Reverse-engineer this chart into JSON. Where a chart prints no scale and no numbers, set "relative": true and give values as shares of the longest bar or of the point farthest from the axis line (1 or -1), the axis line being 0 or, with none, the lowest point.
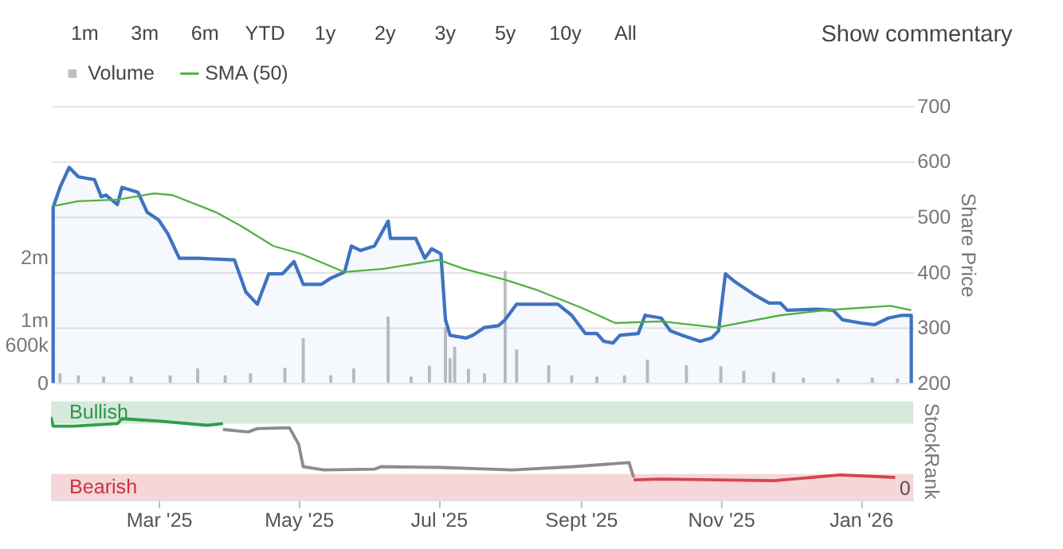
{
  "chart_data": [
    {
      "type": "line",
      "y2label": "Share Price",
      "annotations": [
        "1m",
        "3m",
        "6m",
        "YTD",
        "1y",
        "2y",
        "3y",
        "5y",
        "10y",
        "All",
        "Show commentary"
      ],
      "xlim": [
        "2025-01-13",
        "2026-01-24"
      ],
      "y2lim": [
        200,
        700
      ],
      "y2ticks": [
        200,
        300,
        400,
        500,
        600,
        700
      ],
      "ylim": [
        0,
        4400000
      ],
      "yticks": [
        {
          "value": 0,
          "label": "0"
        },
        {
          "value": 600000,
          "label": "600k"
        },
        {
          "value": 1000000,
          "label": "1m"
        },
        {
          "value": 2000000,
          "label": "2m"
        }
      ],
      "grid": "y",
      "legend": "top left",
      "tick_labels": "y",
      "series": [
        {
          "type": "bar",
          "name": "Volume",
          "color": "#bdbdc2",
          "x": [
            "2025-01-17",
            "2025-01-25",
            "2025-02-05",
            "2025-02-17",
            "2025-03-06",
            "2025-03-18",
            "2025-03-30",
            "2025-04-10",
            "2025-04-25",
            "2025-05-03",
            "2025-05-15",
            "2025-05-25",
            "2025-06-09",
            "2025-06-19",
            "2025-06-27",
            "2025-07-04",
            "2025-07-06",
            "2025-07-08",
            "2025-07-14",
            "2025-07-21",
            "2025-07-30",
            "2025-08-04",
            "2025-08-18",
            "2025-08-28",
            "2025-09-08",
            "2025-09-20",
            "2025-09-30",
            "2025-10-17",
            "2025-11-01",
            "2025-11-11",
            "2025-11-24",
            "2025-12-07",
            "2025-12-22",
            "2026-01-06",
            "2026-01-17"
          ],
          "values": [
            150000,
            120000,
            100000,
            100000,
            120000,
            230000,
            120000,
            150000,
            240000,
            710000,
            120000,
            230000,
            1050000,
            100000,
            270000,
            880000,
            390000,
            570000,
            220000,
            150000,
            1780000,
            530000,
            280000,
            120000,
            100000,
            120000,
            370000,
            280000,
            260000,
            190000,
            170000,
            80000,
            70000,
            80000,
            70000
          ]
        },
        {
          "type": "area",
          "axis": "y2",
          "color": "#3f72c1",
          "x": [
            "2025-01-14",
            "2025-01-17",
            "2025-01-21",
            "2025-01-25",
            "2025-02-01",
            "2025-02-04",
            "2025-02-06",
            "2025-02-11",
            "2025-02-13",
            "2025-02-20",
            "2025-02-24",
            "2025-03-01",
            "2025-03-05",
            "2025-03-10",
            "2025-03-18",
            "2025-04-03",
            "2025-04-08",
            "2025-04-13",
            "2025-04-18",
            "2025-04-24",
            "2025-04-29",
            "2025-05-03",
            "2025-05-11",
            "2025-05-15",
            "2025-05-21",
            "2025-05-24",
            "2025-05-28",
            "2025-06-03",
            "2025-06-09",
            "2025-06-10",
            "2025-06-21",
            "2025-06-25",
            "2025-06-28",
            "2025-07-02",
            "2025-07-04",
            "2025-07-06",
            "2025-07-13",
            "2025-07-16",
            "2025-07-21",
            "2025-07-27",
            "2025-07-30",
            "2025-08-04",
            "2025-08-10",
            "2025-08-22",
            "2025-08-28",
            "2025-09-03",
            "2025-09-08",
            "2025-09-11",
            "2025-09-15",
            "2025-09-18",
            "2025-09-26",
            "2025-09-29",
            "2025-10-06",
            "2025-10-10",
            "2025-10-15",
            "2025-10-23",
            "2025-10-28",
            "2025-10-31",
            "2025-11-03",
            "2025-11-07",
            "2025-11-11",
            "2025-11-16",
            "2025-11-22",
            "2025-11-27",
            "2025-11-30",
            "2025-12-13",
            "2025-12-20",
            "2025-12-24",
            "2026-01-01",
            "2026-01-07",
            "2026-01-13",
            "2026-01-19",
            "2026-01-23"
          ],
          "values": [
            517,
            553,
            589,
            572,
            567,
            536,
            539,
            522,
            553,
            544,
            508,
            494,
            469,
            425,
            425,
            422,
            364,
            342,
            397,
            397,
            419,
            378,
            378,
            389,
            400,
            447,
            439,
            447,
            492,
            461,
            461,
            425,
            442,
            433,
            314,
            286,
            281,
            286,
            300,
            303,
            314,
            342,
            342,
            342,
            322,
            289,
            289,
            275,
            272,
            286,
            289,
            322,
            317,
            294,
            286,
            275,
            281,
            294,
            397,
            383,
            372,
            358,
            344,
            344,
            331,
            333,
            331,
            314,
            308,
            305,
            317,
            322,
            322
          ]
        },
        {
          "type": "line",
          "name": "SMA (50)",
          "axis": "y2",
          "color": "#52b043",
          "x": [
            "2025-01-14",
            "2025-01-25",
            "2025-02-11",
            "2025-02-27",
            "2025-03-07",
            "2025-03-26",
            "2025-04-06",
            "2025-04-20",
            "2025-05-02",
            "2025-05-21",
            "2025-06-07",
            "2025-07-01",
            "2025-07-12",
            "2025-07-30",
            "2025-08-12",
            "2025-09-01",
            "2025-09-16",
            "2025-10-06",
            "2025-10-30",
            "2025-11-27",
            "2025-12-16",
            "2026-01-14",
            "2026-01-23"
          ],
          "values": [
            519,
            528,
            531,
            542,
            539,
            508,
            483,
            447,
            433,
            400,
            406,
            422,
            406,
            386,
            369,
            336,
            308,
            311,
            300,
            322,
            331,
            339,
            331
          ]
        }
      ]
    },
    {
      "type": "line",
      "relative": true,
      "ylabel": "StockRank",
      "annotations": [
        "0"
      ],
      "xlim": [
        "2025-01-13",
        "2026-01-24"
      ],
      "xticks": [
        {
          "value": "2025-03-01",
          "label": "Mar '25"
        },
        {
          "value": "2025-05-01",
          "label": "May '25"
        },
        {
          "value": "2025-07-01",
          "label": "Jul '25"
        },
        {
          "value": "2025-09-01",
          "label": "Sept '25"
        },
        {
          "value": "2025-11-01",
          "label": "Nov '25"
        },
        {
          "value": "2026-01-01",
          "label": "Jan '26"
        }
      ],
      "bands": [
        {
          "axis": "y",
          "from": 0.92,
          "to": 1.19,
          "label": "Bullish",
          "color": "#d5eadb"
        },
        {
          "axis": "y",
          "from": 0,
          "to": 0.31,
          "label": "Bearish",
          "color": "#f5d6d9"
        }
      ],
      "series": [
        {
          "color": "#2e9e4a",
          "x": [
            "2025-01-13",
            "2025-01-14",
            "2025-01-23",
            "2025-02-11",
            "2025-02-13",
            "2025-03-02",
            "2025-03-22",
            "2025-03-29"
          ],
          "values": [
            1,
            0.89,
            0.89,
            0.92,
            0.98,
            0.95,
            0.9,
            0.92
          ]
        },
        {
          "color": "#8c8c8c",
          "x": [
            "2025-03-29",
            "2025-04-09",
            "2025-04-13",
            "2025-04-27",
            "2025-05-01",
            "2025-05-03",
            "2025-05-12",
            "2025-06-03",
            "2025-06-06",
            "2025-07-02",
            "2025-08-02",
            "2025-08-29",
            "2025-09-22",
            "2025-09-24"
          ],
          "values": [
            0.85,
            0.82,
            0.86,
            0.87,
            0.67,
            0.4,
            0.36,
            0.37,
            0.4,
            0.39,
            0.36,
            0.4,
            0.45,
            0.27
          ]
        },
        {
          "color": "#d64550",
          "x": [
            "2025-09-24",
            "2025-10-06",
            "2025-11-24",
            "2025-12-23",
            "2026-01-16"
          ],
          "values": [
            0.24,
            0.25,
            0.23,
            0.3,
            0.27
          ]
        }
      ]
    }
  ]
}
